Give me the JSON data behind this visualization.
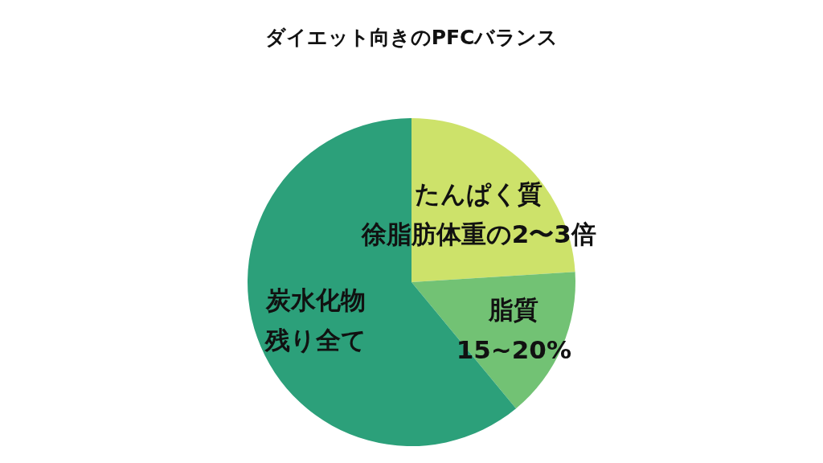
{
  "chart_data": {
    "type": "pie",
    "title": "ダイエット向きのPFCバランス",
    "categories": [
      "たんぱく質",
      "脂質",
      "炭水化物"
    ],
    "values": [
      24,
      15,
      61
    ],
    "value_labels": [
      "徐脂肪体重の2〜3倍",
      "15~20%",
      "残り全て"
    ],
    "colors": [
      "#cde26a",
      "#72c274",
      "#2ca07a"
    ],
    "legend": false
  }
}
